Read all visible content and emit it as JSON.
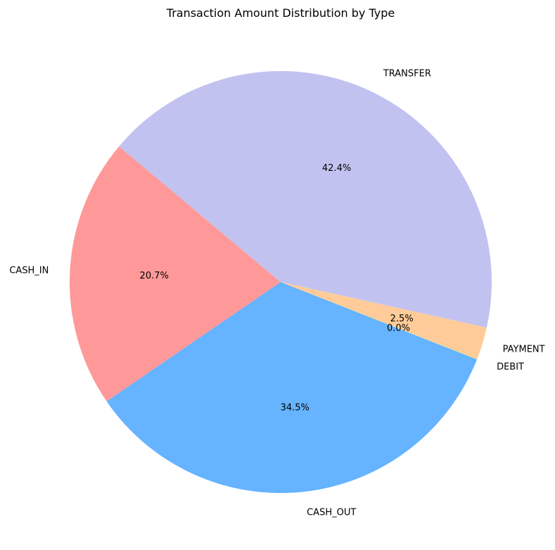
{
  "chart_data": {
    "type": "pie",
    "title": "Transaction Amount Distribution by Type",
    "slices": [
      {
        "label": "CASH_IN",
        "percent": 20.7,
        "pct_label": "20.7%",
        "color": "#ff9999"
      },
      {
        "label": "CASH_OUT",
        "percent": 34.5,
        "pct_label": "34.5%",
        "color": "#66b3ff"
      },
      {
        "label": "DEBIT",
        "percent": 0.02,
        "pct_label": "0.0%",
        "color": "#99ff99"
      },
      {
        "label": "PAYMENT",
        "percent": 2.5,
        "pct_label": "2.5%",
        "color": "#ffcc99"
      },
      {
        "label": "TRANSFER",
        "percent": 42.4,
        "pct_label": "42.4%",
        "color": "#c2c2f0"
      }
    ],
    "start_angle_deg": 140,
    "legend": "none"
  }
}
